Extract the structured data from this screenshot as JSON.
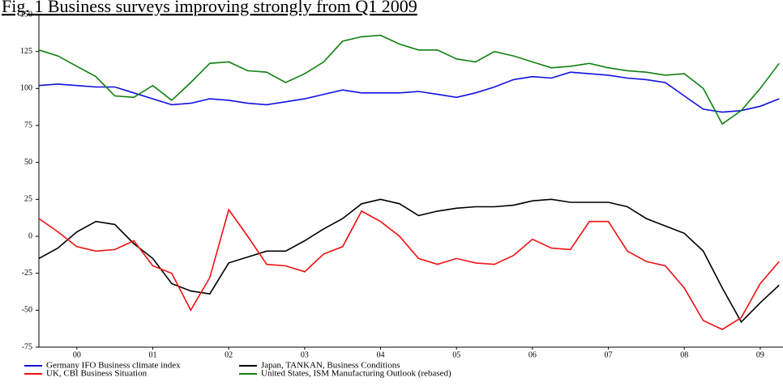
{
  "chart_data": {
    "type": "line",
    "title": "Fig. 1 Business surveys improving strongly from Q1 2009",
    "x": [
      0,
      0.25,
      0.5,
      0.75,
      1,
      1.25,
      1.5,
      1.75,
      2,
      2.25,
      2.5,
      2.75,
      3,
      3.25,
      3.5,
      3.75,
      4,
      4.25,
      4.5,
      4.75,
      5,
      5.25,
      5.5,
      5.75,
      6,
      6.25,
      6.5,
      6.75,
      7,
      7.25,
      7.5,
      7.75,
      8,
      8.25,
      8.5,
      8.75,
      9,
      9.25,
      9.5,
      9.75
    ],
    "xlim": [
      0,
      9.8
    ],
    "xticks": [
      {
        "value": 0.5,
        "label": "00"
      },
      {
        "value": 1.5,
        "label": "01"
      },
      {
        "value": 2.5,
        "label": "02"
      },
      {
        "value": 3.5,
        "label": "03"
      },
      {
        "value": 4.5,
        "label": "04"
      },
      {
        "value": 5.5,
        "label": "05"
      },
      {
        "value": 6.5,
        "label": "06"
      },
      {
        "value": 7.5,
        "label": "07"
      },
      {
        "value": 8.5,
        "label": "08"
      },
      {
        "value": 9.5,
        "label": "09"
      }
    ],
    "ylim": [
      -75,
      150
    ],
    "yticks": [
      -75,
      -50,
      -25,
      0,
      25,
      50,
      75,
      100,
      125,
      150
    ],
    "legend": "bottom",
    "series": [
      {
        "name": "Germany IFO Business climate index",
        "color": "#1010e0",
        "values": [
          102,
          103,
          102,
          101,
          101,
          97,
          93,
          89,
          90,
          93,
          92,
          90,
          89,
          91,
          93,
          96,
          99,
          97,
          97,
          97,
          98,
          96,
          94,
          97,
          101,
          106,
          108,
          107,
          111,
          110,
          109,
          107,
          106,
          104,
          95,
          86,
          84,
          85,
          88,
          93
        ]
      },
      {
        "name": "Japan, TANKAN, Business Conditions",
        "color": "#000000",
        "values": [
          -15,
          -8,
          3,
          10,
          8,
          -5,
          -15,
          -32,
          -37,
          -39,
          -18,
          -14,
          -10,
          -10,
          -3,
          5,
          12,
          22,
          25,
          22,
          14,
          17,
          19,
          20,
          20,
          21,
          24,
          25,
          23,
          23,
          23,
          20,
          12,
          7,
          2,
          -10,
          -35,
          -58,
          -45,
          -33
        ]
      },
      {
        "name": "UK, CBI Business Situation",
        "color": "#ee1111",
        "values": [
          12,
          3,
          -7,
          -10,
          -9,
          -3,
          -20,
          -25,
          -50,
          -28,
          18,
          0,
          -19,
          -20,
          -24,
          -12,
          -7,
          17,
          10,
          0,
          -15,
          -19,
          -15,
          -18,
          -19,
          -13,
          -2,
          -8,
          -9,
          10,
          10,
          -10,
          -17,
          -20,
          -35,
          -57,
          -63,
          -55,
          -32,
          -17
        ]
      },
      {
        "name": "United States, ISM Manufacturing Outlook (rebased)",
        "color": "#108010",
        "values": [
          126,
          122,
          115,
          108,
          95,
          94,
          102,
          92,
          104,
          117,
          118,
          112,
          111,
          104,
          110,
          118,
          132,
          135,
          136,
          130,
          126,
          126,
          120,
          118,
          125,
          122,
          118,
          114,
          115,
          117,
          114,
          112,
          111,
          109,
          110,
          100,
          76,
          85,
          100,
          117
        ]
      }
    ]
  }
}
